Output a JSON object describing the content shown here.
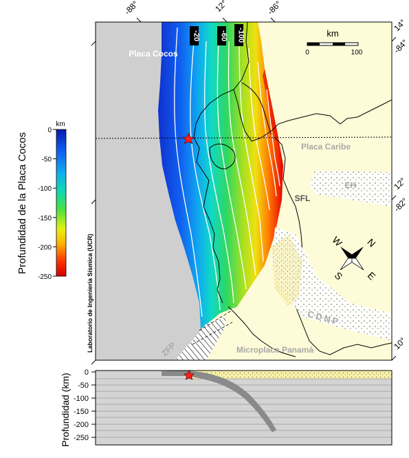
{
  "colorbar": {
    "unit": "km",
    "title": "Profundidad de la Placa Cocos",
    "ticks": [
      "0",
      "-50",
      "-100",
      "-150",
      "-200",
      "-250"
    ]
  },
  "map": {
    "top_labels": [
      "-88°",
      "12°",
      "-86°"
    ],
    "right_labels": [
      "14°",
      "-84°",
      "12°",
      "-82°",
      "10°"
    ],
    "contour_labels": [
      "-20",
      "-60",
      "-100"
    ],
    "place_labels": {
      "cocos": "Placa Cocos",
      "caribe": "Placa Caribe",
      "eh": "EH",
      "sfl": "SFL",
      "cdnp": "CDNP",
      "panama": "Microplaca Panamá",
      "zfp": "ZFP"
    },
    "scale": {
      "title": "km",
      "min": "0",
      "max": "100"
    },
    "compass": {
      "n": "N",
      "e": "E",
      "s": "S",
      "w": "W"
    },
    "credit": "Laboratorio de Ingeniería Sísmica (UCR)"
  },
  "profile": {
    "ylabel": "Profundidad (km)",
    "ticks": [
      "0",
      "-50",
      "-100",
      "-150",
      "-200",
      "-250"
    ]
  },
  "colors": {
    "ocean": "#cfcfcf",
    "land": "#fdfbd8",
    "epicenter": "#ff2020",
    "slab": "#8a8a8a"
  }
}
